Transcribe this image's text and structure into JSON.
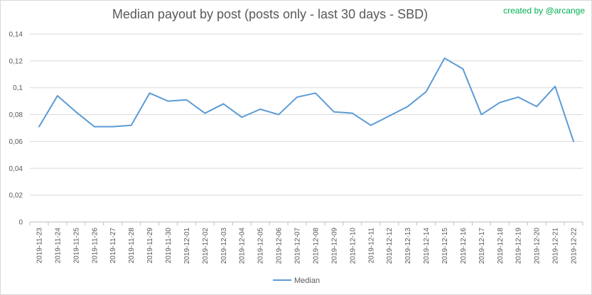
{
  "chart_data": {
    "type": "line",
    "title": "Median payout by post (posts only - last 30 days - SBD)",
    "xlabel": "",
    "ylabel": "",
    "ylim": [
      0,
      0.14
    ],
    "yticks": [
      "0",
      "0,02",
      "0,04",
      "0,06",
      "0,08",
      "0,1",
      "0,12",
      "0,14"
    ],
    "grid": true,
    "legend_position": "bottom",
    "categories": [
      "2019-11-23",
      "2019-11-24",
      "2019-11-25",
      "2019-11-26",
      "2019-11-27",
      "2019-11-28",
      "2019-11-29",
      "2019-11-30",
      "2019-12-01",
      "2019-12-02",
      "2019-12-03",
      "2019-12-04",
      "2019-12-05",
      "2019-12-06",
      "2019-12-07",
      "2019-12-08",
      "2019-12-09",
      "2019-12-10",
      "2019-12-11",
      "2019-12-12",
      "2019-12-13",
      "2019-12-14",
      "2019-12-15",
      "2019-12-16",
      "2019-12-17",
      "2019-12-18",
      "2019-12-19",
      "2019-12-20",
      "2019-12-21",
      "2019-12-22"
    ],
    "series": [
      {
        "name": "Median",
        "color": "#5b9bd5",
        "values": [
          0.071,
          0.094,
          0.082,
          0.071,
          0.071,
          0.072,
          0.096,
          0.09,
          0.091,
          0.081,
          0.088,
          0.078,
          0.084,
          0.08,
          0.093,
          0.096,
          0.082,
          0.081,
          0.072,
          0.079,
          0.086,
          0.097,
          0.122,
          0.114,
          0.08,
          0.089,
          0.093,
          0.086,
          0.101,
          0.06
        ]
      }
    ]
  },
  "watermark": "created by @arcange"
}
